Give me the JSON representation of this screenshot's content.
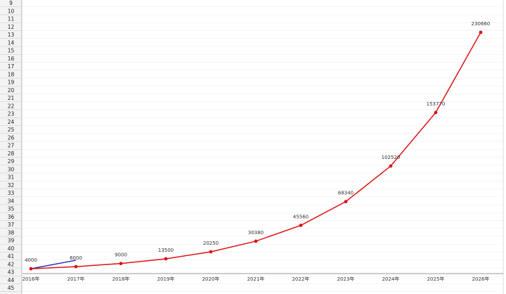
{
  "sheet": {
    "row_numbers": [
      9,
      10,
      11,
      12,
      13,
      14,
      15,
      16,
      17,
      18,
      19,
      20,
      21,
      22,
      23,
      24,
      25,
      26,
      27,
      28,
      29,
      30,
      31,
      32,
      33,
      34,
      35,
      36,
      37,
      38,
      39,
      40,
      41,
      42,
      43,
      44,
      45
    ]
  },
  "chart_data": {
    "type": "line",
    "categories": [
      "2016年",
      "2017年",
      "2018年",
      "2019年",
      "2020年",
      "2021年",
      "2022年",
      "2023年",
      "2024年",
      "2025年",
      "2026年"
    ],
    "series": [
      {
        "color": "#dd1111",
        "values": [
          4000,
          6000,
          9000,
          13500,
          20250,
          30380,
          45560,
          68340,
          102520,
          153770,
          230660
        ]
      }
    ]
  }
}
